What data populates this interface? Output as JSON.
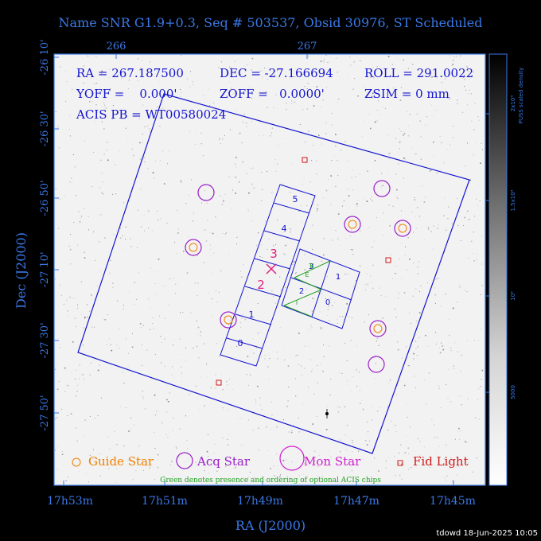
{
  "header": {
    "title": "Name SNR G1.9+0.3, Seq # 503537, Obsid 30976, ST Scheduled"
  },
  "params": {
    "line1": [
      "RA = 267.187500",
      "DEC = -27.166694",
      "ROLL = 291.0022"
    ],
    "line2": [
      "YOFF =    0.000'",
      "ZOFF =   0.0000'",
      "ZSIM = 0 mm"
    ],
    "line3": "ACIS PB = WT00580024"
  },
  "axes": {
    "top_ticks": [
      "266",
      "267"
    ],
    "left_ticks": [
      "-26 10'",
      "-26 30'",
      "-26 50'",
      "-27 10'",
      "-27 30'",
      "-27 50'"
    ],
    "bottom_ticks": [
      "17h53m",
      "17h51m",
      "17h49m",
      "17h47m",
      "17h45m"
    ],
    "xlabel": "RA (J2000)",
    "ylabel": "Dec (J2000)"
  },
  "colorbar": {
    "label": "PUSS scaled density",
    "ticks": [
      "2x10⁴",
      "1.5x10⁴",
      "10⁴",
      "5000"
    ]
  },
  "chips": {
    "acis_s": [
      "0",
      "1",
      "2",
      "3",
      "4",
      "5"
    ],
    "acis_i": [
      "0",
      "1",
      "2",
      "3"
    ],
    "optional": [
      "I",
      "E",
      "B"
    ],
    "big_labels": [
      "3",
      "2"
    ]
  },
  "legend": {
    "guide": "Guide Star",
    "acq": "Acq Star",
    "mon": "Mon Star",
    "fid": "Fid Light",
    "note": "Green denotes presence and ordering of optional ACIS chips"
  },
  "footer": "tdowd 18-Jun-2025 10:05",
  "colors": {
    "frame": "#3a78e6",
    "chip": "#1414d0",
    "guide": "#f08000",
    "acq": "#9a20c8",
    "mon": "#d020d0",
    "fid": "#d01818",
    "green": "#20a020",
    "aimpoint": "#e02080"
  }
}
